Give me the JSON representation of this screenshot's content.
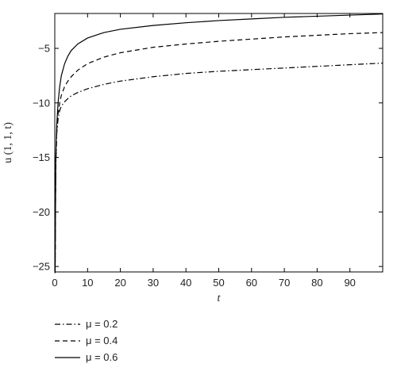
{
  "chart_data": {
    "type": "line",
    "title": "",
    "xlabel": "t",
    "ylabel": "u (1, 1, t)",
    "xlim": [
      0,
      100
    ],
    "ylim": [
      -25.5,
      -1.8
    ],
    "xticks": [
      0,
      10,
      20,
      30,
      40,
      50,
      60,
      70,
      80,
      90
    ],
    "yticks": [
      -25,
      -20,
      -15,
      -10,
      -5
    ],
    "grid": false,
    "legend_position": "bottom-left, below plot",
    "series": [
      {
        "name": "μ = 0.2",
        "style": "dashdot",
        "color": "#000000",
        "x": [
          0.1,
          0.3,
          0.6,
          1,
          1.5,
          2,
          3,
          4,
          5,
          7,
          10,
          15,
          20,
          30,
          40,
          50,
          60,
          70,
          80,
          90,
          100
        ],
        "y": [
          -25.6,
          -16.0,
          -12.8,
          -11.5,
          -10.7,
          -10.3,
          -9.9,
          -9.6,
          -9.35,
          -9.05,
          -8.7,
          -8.3,
          -8.0,
          -7.6,
          -7.3,
          -7.1,
          -6.95,
          -6.8,
          -6.65,
          -6.5,
          -6.35
        ]
      },
      {
        "name": "μ = 0.4",
        "style": "dashed",
        "color": "#000000",
        "x": [
          0.1,
          0.3,
          0.6,
          1,
          1.5,
          2,
          3,
          4,
          5,
          7,
          10,
          15,
          20,
          30,
          40,
          50,
          60,
          70,
          80,
          90,
          100
        ],
        "y": [
          -25.6,
          -15.5,
          -12.5,
          -11.0,
          -10.0,
          -9.3,
          -8.5,
          -8.0,
          -7.6,
          -7.0,
          -6.4,
          -5.8,
          -5.4,
          -4.9,
          -4.6,
          -4.35,
          -4.15,
          -3.95,
          -3.8,
          -3.65,
          -3.55
        ]
      },
      {
        "name": "μ = 0.6",
        "style": "solid",
        "color": "#000000",
        "x": [
          0.1,
          0.3,
          0.6,
          1,
          1.5,
          2,
          3,
          4,
          5,
          7,
          10,
          15,
          20,
          30,
          40,
          50,
          60,
          70,
          80,
          90,
          100
        ],
        "y": [
          -25.6,
          -15.0,
          -12.0,
          -10.0,
          -8.5,
          -7.5,
          -6.4,
          -5.7,
          -5.2,
          -4.6,
          -4.05,
          -3.55,
          -3.25,
          -2.9,
          -2.65,
          -2.45,
          -2.3,
          -2.15,
          -2.05,
          -1.95,
          -1.85
        ]
      }
    ]
  }
}
